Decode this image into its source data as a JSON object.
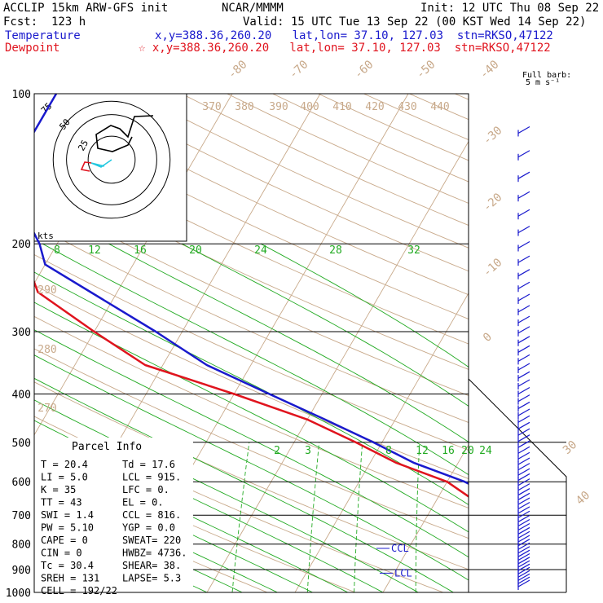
{
  "header": {
    "model": "ACCLIP 15km ARW-GFS init",
    "source": "NCAR/MMMM",
    "init": "Init: 12 UTC Thu 08 Sep 22",
    "fcst": "Fcst:  123 h",
    "valid": "Valid: 15 UTC Tue 13 Sep 22 (00 KST Wed 14 Sep 22)",
    "temp_label": "Temperature",
    "temp_info": "x,y=388.36,260.20   lat,lon= 37.10, 127.03  stn=RKSO,47122",
    "dew_label": "Dewpoint",
    "dew_info": "☆ x,y=388.36,260.20   lat,lon= 37.10, 127.03  stn=RKSO,47122",
    "barb_note_1": "Full barb:",
    "barb_note_2": "5 m s⁻¹"
  },
  "colors": {
    "temperature": "#1a1acd",
    "dewpoint": "#e0141e",
    "isotherm": "#c8a98a",
    "mixing_ratio": "#22aa22",
    "isobar": "#000000"
  },
  "chart_data": {
    "type": "line",
    "title": "",
    "xlabel": "",
    "ylabel": "",
    "y_scale": "log-pressure",
    "ylim": [
      1000,
      100
    ],
    "pressure_ticks": [
      "100",
      "200",
      "300",
      "400",
      "500",
      "600",
      "700",
      "800",
      "900",
      "1000"
    ],
    "isotherm_labels": [
      "-80",
      "-70",
      "-60",
      "-50",
      "-40",
      "-30",
      "-20",
      "-10",
      "0",
      "30",
      "40"
    ],
    "theta_labels": [
      "370",
      "380",
      "390",
      "400",
      "410",
      "420",
      "430",
      "440",
      "290",
      "280",
      "270"
    ],
    "mixing_ratio_labels_upper": [
      "8",
      "12",
      "16",
      "20",
      "24",
      "28",
      "32"
    ],
    "mixing_ratio_labels_lower": [
      "2",
      "3",
      "8",
      "12",
      "16",
      "20",
      "24"
    ],
    "series": [
      {
        "name": "Temperature",
        "points": [
          [
            100,
            -70
          ],
          [
            130,
            -70
          ],
          [
            160,
            -68
          ],
          [
            200,
            -62
          ],
          [
            220,
            -60
          ],
          [
            250,
            -53
          ],
          [
            300,
            -43
          ],
          [
            350,
            -35
          ],
          [
            400,
            -26
          ],
          [
            450,
            -18
          ],
          [
            500,
            -11
          ],
          [
            550,
            -5
          ],
          [
            600,
            2
          ],
          [
            650,
            7
          ],
          [
            700,
            11
          ],
          [
            750,
            13
          ],
          [
            800,
            15
          ],
          [
            850,
            18
          ],
          [
            900,
            20
          ],
          [
            950,
            21
          ],
          [
            1000,
            20.4
          ]
        ]
      },
      {
        "name": "Dewpoint",
        "points": [
          [
            100,
            -86
          ],
          [
            120,
            -86
          ],
          [
            140,
            -84
          ],
          [
            160,
            -85
          ],
          [
            180,
            -87
          ],
          [
            195,
            -86
          ],
          [
            210,
            -72
          ],
          [
            220,
            -62
          ],
          [
            250,
            -59
          ],
          [
            300,
            -50
          ],
          [
            350,
            -42
          ],
          [
            400,
            -30
          ],
          [
            450,
            -20
          ],
          [
            500,
            -13
          ],
          [
            550,
            -7
          ],
          [
            600,
            0
          ],
          [
            650,
            4
          ],
          [
            700,
            8
          ],
          [
            750,
            10
          ],
          [
            800,
            12
          ],
          [
            850,
            15
          ],
          [
            900,
            17
          ],
          [
            950,
            13
          ],
          [
            1000,
            17.6
          ]
        ]
      }
    ],
    "ccl_label": "CCL",
    "lcl_label": "LCL",
    "hodograph": {
      "ring_labels": [
        "75",
        "50",
        "25"
      ],
      "units_label": "kts"
    },
    "parcel_info": {
      "title": "Parcel Info",
      "rows": [
        [
          "T   =    20.4",
          "Td  =  17.6"
        ],
        [
          "LI  =     5.0",
          "LCL =  915."
        ],
        [
          "K   =      35",
          "LFC =    0."
        ],
        [
          "TT  =      43",
          "EL  =    0."
        ],
        [
          "SWI =     1.4",
          "CCL =  816."
        ],
        [
          "PW  =    5.10",
          "YGP =   0.0"
        ],
        [
          "CAPE =      0",
          "SWEAT=  220"
        ],
        [
          "CIN  =      0",
          "HWBZ= 4736."
        ],
        [
          "Tc   =   30.4",
          "SHEAR=  38."
        ],
        [
          "SREH =    131",
          "LAPSE=  5.3"
        ],
        [
          "CELL = 192/22",
          ""
        ]
      ]
    }
  }
}
